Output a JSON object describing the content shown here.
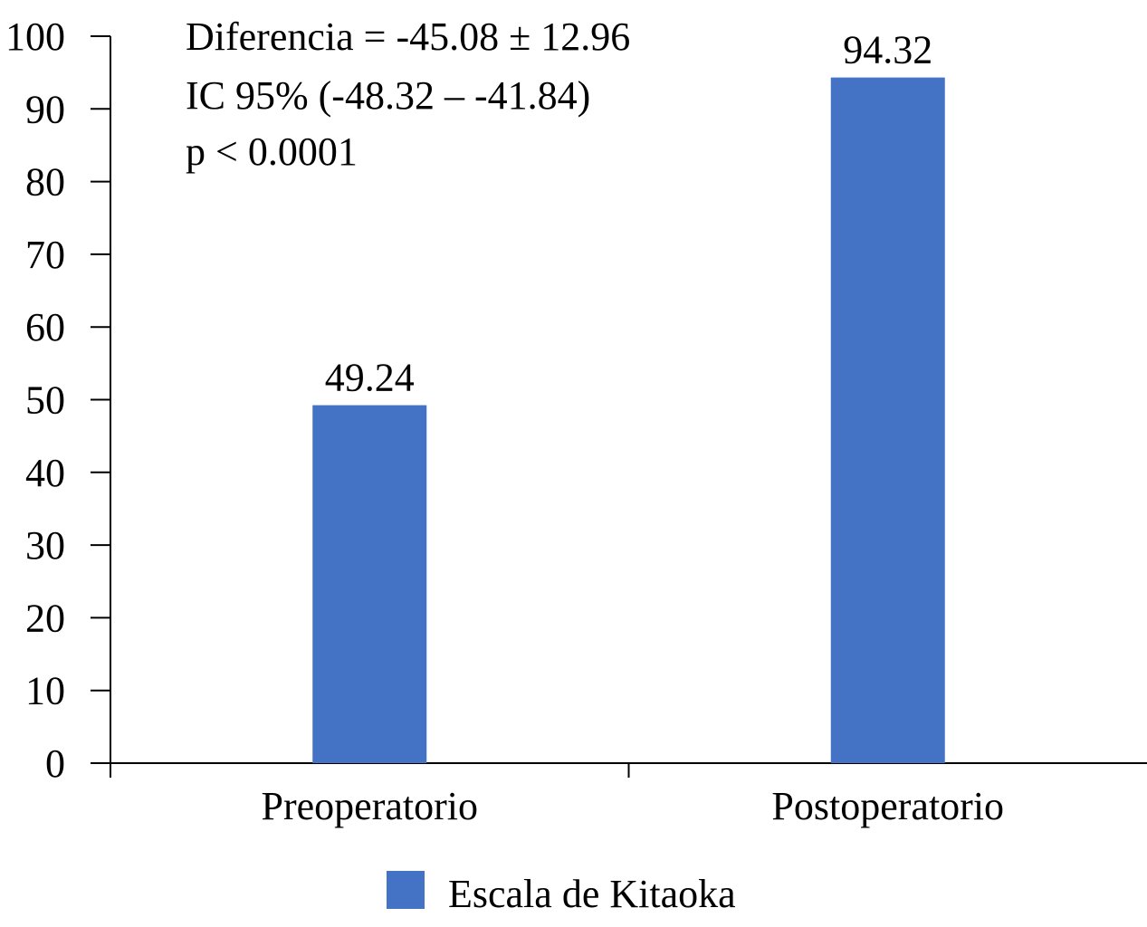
{
  "chart_data": {
    "type": "bar",
    "categories": [
      "Preoperatorio",
      "Postoperatorio"
    ],
    "series": [
      {
        "name": "Escala de Kitaoka",
        "values": [
          49.24,
          94.32
        ],
        "color": "#4472C4"
      }
    ],
    "data_labels": [
      "49.24",
      "94.32"
    ],
    "ylim": [
      0,
      100
    ],
    "yticks": [
      "0",
      "10",
      "20",
      "30",
      "40",
      "50",
      "60",
      "70",
      "80",
      "90",
      "100"
    ],
    "ytick_values": [
      0,
      10,
      20,
      30,
      40,
      50,
      60,
      70,
      80,
      90,
      100
    ],
    "grid": false,
    "legend_position": "bottom",
    "annotations": [
      "Diferencia = -45.08 ± 12.96",
      "IC 95% (-48.32 – -41.84)",
      "p < 0.0001"
    ],
    "title": "",
    "xlabel": "",
    "ylabel": ""
  }
}
